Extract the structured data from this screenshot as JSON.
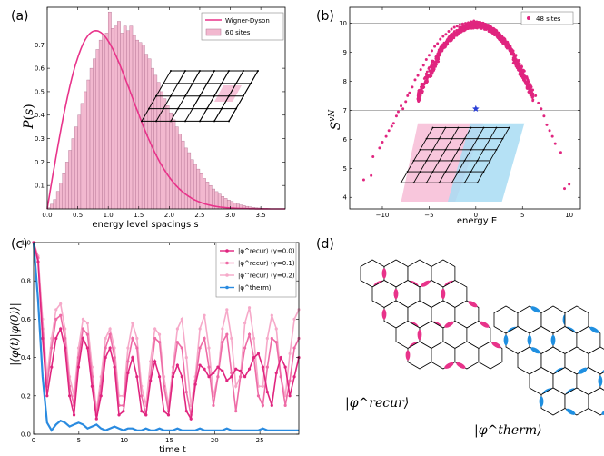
{
  "chart_data": [
    {
      "panel": "(a)",
      "type": "bar",
      "xlabel": "energy level spacings s",
      "ylabel": "P(s)",
      "xlim": [
        0,
        3.9
      ],
      "ylim": [
        0,
        0.86
      ],
      "xticks": [
        "0.0",
        "0.5",
        "1.0",
        "1.5",
        "2.0",
        "2.5",
        "3.0",
        "3.5"
      ],
      "yticks": [
        "0.1",
        "0.2",
        "0.3",
        "0.4",
        "0.5",
        "0.6",
        "0.7"
      ],
      "bin_width": 0.05,
      "values": [
        0.005,
        0.02,
        0.04,
        0.075,
        0.11,
        0.15,
        0.2,
        0.25,
        0.3,
        0.35,
        0.4,
        0.45,
        0.5,
        0.55,
        0.6,
        0.64,
        0.68,
        0.72,
        0.74,
        0.75,
        0.84,
        0.77,
        0.78,
        0.8,
        0.75,
        0.78,
        0.76,
        0.78,
        0.74,
        0.72,
        0.71,
        0.7,
        0.66,
        0.64,
        0.6,
        0.57,
        0.54,
        0.5,
        0.47,
        0.44,
        0.41,
        0.38,
        0.35,
        0.32,
        0.29,
        0.26,
        0.24,
        0.21,
        0.19,
        0.17,
        0.15,
        0.13,
        0.115,
        0.1,
        0.085,
        0.074,
        0.063,
        0.053,
        0.045,
        0.038,
        0.032,
        0.026,
        0.021,
        0.017,
        0.014,
        0.011,
        0.009,
        0.007,
        0.005,
        0.004,
        0.003,
        0.002,
        0.002,
        0.001,
        0.001,
        0.001
      ],
      "legend": [
        {
          "label": "Wigner-Dyson",
          "color": "#e8338a",
          "kind": "line"
        },
        {
          "label": "60 sites",
          "color": "#f2b8cf",
          "kind": "bar"
        }
      ],
      "legend_position": "top-right"
    },
    {
      "panel": "(b)",
      "type": "scatter",
      "xlabel": "energy E",
      "ylabel": "S^{vN}",
      "xlim": [
        -13.5,
        11.2
      ],
      "ylim": [
        3.6,
        10.55
      ],
      "xticks": [
        "−10",
        "−5",
        "0",
        "5",
        "10"
      ],
      "yticks": [
        "4",
        "5",
        "6",
        "7",
        "8",
        "9",
        "10"
      ],
      "hlines": [
        10.0,
        7.0
      ],
      "series": [
        {
          "name": "48 sites",
          "color": "#e0257f"
        }
      ],
      "star_point": {
        "x": 0.0,
        "y": 7.05,
        "color": "#2a3fd6"
      },
      "scatter_points": [
        [
          -12,
          4.6
        ],
        [
          -11.2,
          4.75
        ],
        [
          -11,
          5.4
        ],
        [
          -10.3,
          5.7
        ],
        [
          -10,
          5.9
        ],
        [
          -9.6,
          6.1
        ],
        [
          -9.3,
          6.3
        ],
        [
          -9,
          6.45
        ],
        [
          -8.8,
          6.55
        ],
        [
          -8.5,
          6.8
        ],
        [
          -8.3,
          6.95
        ],
        [
          -8,
          7.15
        ],
        [
          -7.8,
          7.05
        ],
        [
          -7.5,
          7.3
        ],
        [
          -7.3,
          7.5
        ],
        [
          -7.1,
          7.6
        ],
        [
          -6.8,
          7.8
        ],
        [
          -6.5,
          8.05
        ],
        [
          -6.2,
          8.2
        ],
        [
          -5.9,
          8.4
        ],
        [
          -5.6,
          8.55
        ],
        [
          -5.3,
          8.75
        ],
        [
          -5,
          8.9
        ],
        [
          -4.7,
          9.05
        ],
        [
          -4.4,
          9.2
        ],
        [
          -4.1,
          9.3
        ],
        [
          -3.8,
          9.45
        ],
        [
          -3.5,
          9.55
        ],
        [
          -3.2,
          9.62
        ],
        [
          -2.9,
          9.72
        ],
        [
          -2.6,
          9.8
        ],
        [
          -2.3,
          9.86
        ],
        [
          -2,
          9.9
        ],
        [
          -1.7,
          9.95
        ],
        [
          -1.4,
          9.98
        ],
        [
          -1.1,
          10
        ],
        [
          -0.8,
          10.02
        ],
        [
          -0.5,
          10.05
        ],
        [
          -0.2,
          10.08
        ],
        [
          0.1,
          10.05
        ],
        [
          0.4,
          10.03
        ],
        [
          0.7,
          10
        ],
        [
          1,
          9.97
        ],
        [
          1.3,
          9.93
        ],
        [
          1.6,
          9.88
        ],
        [
          1.9,
          9.82
        ],
        [
          2.2,
          9.75
        ],
        [
          2.5,
          9.66
        ],
        [
          2.8,
          9.56
        ],
        [
          3.1,
          9.46
        ],
        [
          3.4,
          9.35
        ],
        [
          3.7,
          9.2
        ],
        [
          4,
          9.05
        ],
        [
          4.3,
          8.9
        ],
        [
          4.6,
          8.72
        ],
        [
          4.9,
          8.52
        ],
        [
          5.2,
          8.35
        ],
        [
          5.5,
          8.1
        ],
        [
          5.8,
          7.9
        ],
        [
          6.1,
          7.7
        ],
        [
          6.4,
          7.5
        ],
        [
          6.7,
          7.25
        ],
        [
          7,
          7.05
        ],
        [
          7.3,
          6.8
        ],
        [
          7.6,
          6.5
        ],
        [
          7.9,
          6.3
        ],
        [
          8.2,
          6.1
        ],
        [
          8.5,
          5.85
        ],
        [
          9.1,
          5.55
        ],
        [
          9.5,
          4.3
        ],
        [
          10,
          4.45
        ]
      ],
      "legend_position": "top-right"
    },
    {
      "panel": "(c)",
      "type": "line",
      "xlabel": "time t",
      "ylabel": "|⟨φ(t)|φ(0)⟩|",
      "xlim": [
        0,
        29.3
      ],
      "ylim": [
        0,
        1.0
      ],
      "xticks": [
        "0",
        "5",
        "10",
        "15",
        "20",
        "25"
      ],
      "yticks": [
        "0.0",
        "0.2",
        "0.4",
        "0.6",
        "0.8",
        "1.0"
      ],
      "series": [
        {
          "name": "|φ^recur⟩ (γ=0.0)",
          "color": "#e0257f",
          "values": [
            1.0,
            0.9,
            0.5,
            0.2,
            0.35,
            0.5,
            0.55,
            0.45,
            0.2,
            0.1,
            0.35,
            0.5,
            0.45,
            0.25,
            0.08,
            0.2,
            0.4,
            0.45,
            0.35,
            0.1,
            0.12,
            0.32,
            0.4,
            0.3,
            0.12,
            0.1,
            0.28,
            0.38,
            0.3,
            0.12,
            0.1,
            0.3,
            0.36,
            0.3,
            0.12,
            0.08,
            0.26,
            0.36,
            0.34,
            0.3,
            0.32,
            0.35,
            0.33,
            0.28,
            0.3,
            0.34,
            0.33,
            0.3,
            0.34,
            0.4,
            0.42,
            0.35,
            0.22,
            0.15,
            0.32,
            0.4,
            0.35,
            0.2,
            0.3,
            0.4
          ]
        },
        {
          "name": "|φ^recur⟩ (γ=0.1)",
          "color": "#ee6ba6",
          "values": [
            1.0,
            0.92,
            0.55,
            0.25,
            0.45,
            0.6,
            0.62,
            0.5,
            0.25,
            0.15,
            0.4,
            0.55,
            0.52,
            0.3,
            0.1,
            0.25,
            0.45,
            0.52,
            0.4,
            0.15,
            0.15,
            0.38,
            0.5,
            0.45,
            0.2,
            0.1,
            0.3,
            0.5,
            0.48,
            0.25,
            0.12,
            0.32,
            0.48,
            0.45,
            0.22,
            0.1,
            0.28,
            0.45,
            0.5,
            0.35,
            0.15,
            0.3,
            0.48,
            0.52,
            0.32,
            0.12,
            0.3,
            0.45,
            0.52,
            0.4,
            0.2,
            0.15,
            0.35,
            0.5,
            0.48,
            0.3,
            0.15,
            0.28,
            0.45,
            0.5
          ]
        },
        {
          "name": "|φ^recur⟩ (γ=0.2)",
          "color": "#f6a9c9",
          "values": [
            1.0,
            0.93,
            0.6,
            0.3,
            0.5,
            0.65,
            0.68,
            0.55,
            0.3,
            0.2,
            0.45,
            0.6,
            0.58,
            0.35,
            0.12,
            0.3,
            0.5,
            0.55,
            0.45,
            0.2,
            0.2,
            0.45,
            0.58,
            0.5,
            0.25,
            0.15,
            0.38,
            0.55,
            0.52,
            0.3,
            0.15,
            0.35,
            0.55,
            0.6,
            0.4,
            0.15,
            0.3,
            0.55,
            0.62,
            0.45,
            0.2,
            0.3,
            0.55,
            0.65,
            0.5,
            0.25,
            0.3,
            0.58,
            0.66,
            0.5,
            0.25,
            0.25,
            0.5,
            0.62,
            0.55,
            0.3,
            0.2,
            0.42,
            0.6,
            0.65
          ]
        },
        {
          "name": "|φ^therm⟩",
          "color": "#2a8be0",
          "values": [
            1.0,
            0.7,
            0.3,
            0.06,
            0.02,
            0.05,
            0.07,
            0.06,
            0.04,
            0.05,
            0.06,
            0.05,
            0.03,
            0.04,
            0.05,
            0.03,
            0.02,
            0.03,
            0.04,
            0.03,
            0.02,
            0.03,
            0.03,
            0.02,
            0.02,
            0.03,
            0.02,
            0.02,
            0.03,
            0.02,
            0.02,
            0.02,
            0.03,
            0.02,
            0.02,
            0.02,
            0.02,
            0.03,
            0.02,
            0.02,
            0.02,
            0.02,
            0.02,
            0.03,
            0.02,
            0.02,
            0.02,
            0.02,
            0.02,
            0.02,
            0.02,
            0.03,
            0.02,
            0.02,
            0.02,
            0.02,
            0.02,
            0.02,
            0.02,
            0.02
          ]
        }
      ],
      "legend_position": "top-right"
    }
  ],
  "panels": {
    "a": "(a)",
    "b": "(b)",
    "c": "(c)",
    "d": "(d)"
  },
  "panel_d": {
    "recur_label": "|φ^recur⟩",
    "therm_label": "|φ^therm⟩",
    "recur_color": "#e8338a",
    "therm_color": "#1f8fe0"
  }
}
